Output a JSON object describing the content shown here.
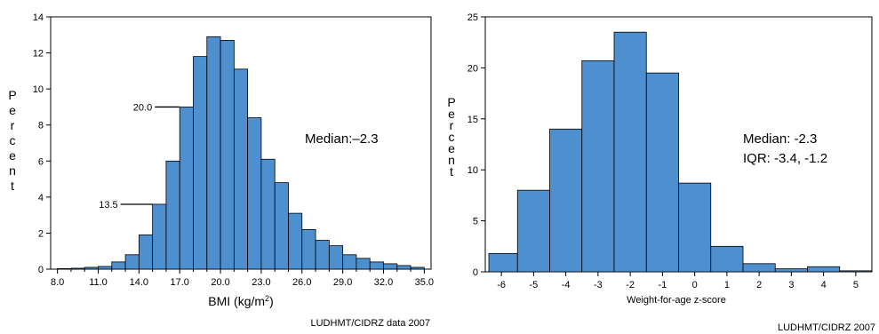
{
  "colors": {
    "bar": "#4d8fcf",
    "bar_edge": "#000000",
    "axis": "#000000"
  },
  "chart_data": [
    {
      "type": "bar",
      "ylabel": "Percent",
      "xlabel_main": "BMI (kg/m",
      "xlabel_sup": "2",
      "xlabel_end": ")",
      "ylim": [
        0,
        14
      ],
      "yticks": [
        0,
        2,
        4,
        6,
        8,
        10,
        12,
        14
      ],
      "xlim": [
        7.5,
        35.5
      ],
      "xticks": [
        8.0,
        11.0,
        14.0,
        17.0,
        20.0,
        23.0,
        26.0,
        29.0,
        32.0,
        35.0
      ],
      "xtick_labels": [
        "8.0",
        "11.0",
        "14.0",
        "17.0",
        "20.0",
        "23.0",
        "26.0",
        "29.0",
        "32.0",
        "35.0"
      ],
      "bin_width": 1.0,
      "bins_start": [
        8,
        9,
        10,
        11,
        12,
        13,
        14,
        15,
        16,
        17,
        18,
        19,
        20,
        21,
        22,
        23,
        24,
        25,
        26,
        27,
        28,
        29,
        30,
        31,
        32,
        33,
        34
      ],
      "values": [
        0.03,
        0.05,
        0.1,
        0.15,
        0.4,
        0.8,
        1.9,
        3.6,
        6.0,
        9.0,
        11.8,
        12.9,
        12.7,
        11.1,
        8.4,
        6.1,
        4.8,
        3.1,
        2.2,
        1.6,
        1.3,
        0.8,
        0.6,
        0.4,
        0.3,
        0.2,
        0.1
      ],
      "annotations": [
        {
          "label": "20.0",
          "x": 17,
          "y": 9.0
        },
        {
          "label": "13.5",
          "x": 15,
          "y": 3.6
        }
      ],
      "median_text": "Median:–2.3",
      "credit": "LUDHMT/CIDRZ data 2007"
    },
    {
      "type": "bar",
      "ylabel": "Percent",
      "xlabel": "Weight-for-age z-score",
      "ylim": [
        0,
        25
      ],
      "yticks": [
        0,
        5,
        10,
        15,
        20,
        25
      ],
      "xlim": [
        -6.5,
        5.5
      ],
      "xticks": [
        -6,
        -5,
        -4,
        -3,
        -2,
        -1,
        0,
        1,
        2,
        3,
        4,
        5
      ],
      "bin_edges": [
        -6.6,
        -5.5,
        -4.5,
        -3.5,
        -2.5,
        -1.5,
        -0.5,
        0.5,
        1.5,
        2.5,
        3.5,
        4.5,
        5.5
      ],
      "values": [
        1.8,
        8.0,
        14.0,
        20.7,
        23.5,
        19.5,
        8.7,
        2.5,
        0.8,
        0.3,
        0.5,
        0.1
      ],
      "median_text": "Median: -2.3",
      "iqr_text": "IQR: -3.4, -1.2",
      "credit": "LUDHMT/CIDRZ 2007"
    }
  ]
}
